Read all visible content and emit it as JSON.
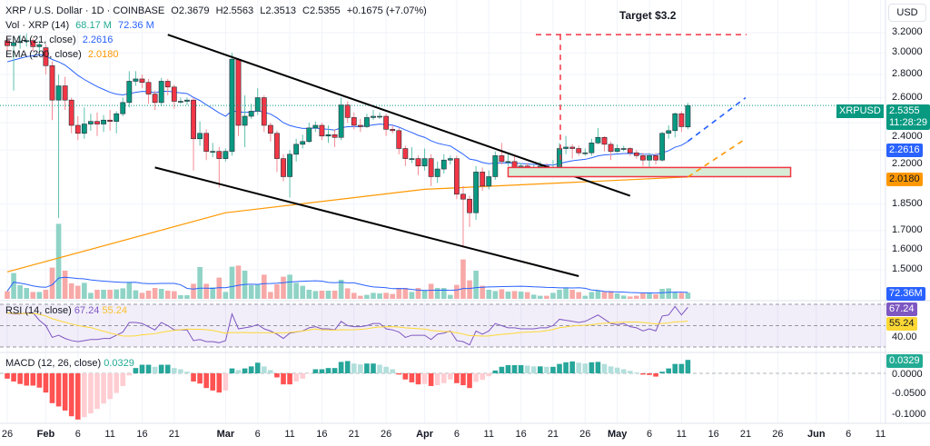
{
  "header": {
    "symbol_line": "XRP / U.S. Dollar · 1D · COINBASE",
    "open": "O2.3679",
    "high": "H2.5563",
    "low": "L2.3513",
    "close": "C2.5355",
    "change": "+0.1675 (+7.07%)"
  },
  "legend": {
    "vol_label": "Vol · XRP (14)",
    "vol_value": "68.17 M",
    "vol_ma": "72.36 M",
    "ema21_label": "EMA (21, close)",
    "ema21_value": "2.2616",
    "ema200_label": "EMA (200, close)",
    "ema200_value": "2.0180",
    "rsi_label": "RSI (14, close)",
    "rsi_value": "67.24",
    "rsi_ma_value": "55.24",
    "macd_label": "MACD (12, 26, close)",
    "macd_value": "0.0329"
  },
  "annotations": {
    "target_label": "Target $3.2",
    "target_price": 3.2,
    "upper_trendline": [
      {
        "date": "02-20",
        "price": 3.18
      },
      {
        "date": "05-03",
        "price": 1.9
      }
    ],
    "lower_trendline": [
      {
        "date": "02-18",
        "price": 2.08
      },
      {
        "date": "04-25",
        "price": 1.47
      }
    ],
    "support_zone": {
      "from": "04-14",
      "to": "05-28",
      "low": 2.02,
      "high": 2.08
    },
    "ema21_projection": {
      "to": "05-21",
      "price": 2.6
    },
    "ema200_projection": {
      "to": "05-21",
      "price": 2.28
    }
  },
  "right_axis": {
    "currency": "USD",
    "price_ticks": [
      "3.2000",
      "3.0000",
      "2.8000",
      "2.6000",
      "2.4000",
      "2.2000",
      "1.8500",
      "1.7000",
      "1.6000",
      "1.5000"
    ],
    "symbol_tag": "XRPUSD",
    "last_price": "2.5355",
    "countdown": "11:28:29",
    "ema21_tag": "2.2616",
    "ema200_tag": "2.0180",
    "vol_tag": "72.36M",
    "rsi_tag": "67.24",
    "rsi_ma_tag": "55.24",
    "rsi_tick": "40.00",
    "macd_tag": "0.0329",
    "macd_ticks": [
      "0.0000",
      "-0.0500",
      "-0.1000"
    ]
  },
  "x_axis": [
    {
      "label": "26",
      "date": "01-26"
    },
    {
      "label": "Feb",
      "date": "02-01",
      "month": true
    },
    {
      "label": "6",
      "date": "02-06"
    },
    {
      "label": "11",
      "date": "02-11"
    },
    {
      "label": "16",
      "date": "02-16"
    },
    {
      "label": "21",
      "date": "02-21"
    },
    {
      "label": "Mar",
      "date": "03-01",
      "month": true
    },
    {
      "label": "6",
      "date": "03-06"
    },
    {
      "label": "11",
      "date": "03-11"
    },
    {
      "label": "16",
      "date": "03-16"
    },
    {
      "label": "21",
      "date": "03-21"
    },
    {
      "label": "26",
      "date": "03-26"
    },
    {
      "label": "Apr",
      "date": "04-01",
      "month": true
    },
    {
      "label": "6",
      "date": "04-06"
    },
    {
      "label": "11",
      "date": "04-11"
    },
    {
      "label": "16",
      "date": "04-16"
    },
    {
      "label": "21",
      "date": "04-21"
    },
    {
      "label": "26",
      "date": "04-26"
    },
    {
      "label": "May",
      "date": "05-01",
      "month": true
    },
    {
      "label": "6",
      "date": "05-06"
    },
    {
      "label": "11",
      "date": "05-11"
    },
    {
      "label": "16",
      "date": "05-16"
    },
    {
      "label": "21",
      "date": "05-21"
    },
    {
      "label": "26",
      "date": "05-26"
    },
    {
      "label": "Jun",
      "date": "06-01",
      "month": true
    },
    {
      "label": "6",
      "date": "06-06"
    },
    {
      "label": "11",
      "date": "06-11"
    }
  ],
  "colors": {
    "up": "#089981",
    "down": "#f23645",
    "ema21": "#2962ff",
    "ema200": "#ff9800",
    "rsi": "#7e57c2",
    "rsi_ma": "#fdd835",
    "target": "#f23645",
    "grid": "#f0f3fa"
  },
  "chart_data": {
    "type": "candlestick",
    "start_date": "01-26",
    "price_scale": "log",
    "ohlc": [
      [
        3.12,
        3.15,
        3.02,
        3.07
      ],
      [
        3.07,
        3.16,
        2.66,
        3.1
      ],
      [
        3.1,
        3.18,
        3.04,
        3.11
      ],
      [
        3.11,
        3.19,
        3.06,
        3.12
      ],
      [
        3.12,
        3.14,
        3.02,
        3.06
      ],
      [
        3.06,
        3.12,
        3.0,
        3.08
      ],
      [
        3.05,
        3.08,
        2.8,
        2.88
      ],
      [
        2.88,
        2.92,
        2.42,
        2.58
      ],
      [
        2.58,
        2.8,
        1.77,
        2.7
      ],
      [
        2.7,
        2.78,
        2.5,
        2.58
      ],
      [
        2.58,
        2.6,
        2.32,
        2.38
      ],
      [
        2.38,
        2.45,
        2.27,
        2.32
      ],
      [
        2.32,
        2.52,
        2.28,
        2.39
      ],
      [
        2.39,
        2.47,
        2.34,
        2.41
      ],
      [
        2.41,
        2.48,
        2.3,
        2.39
      ],
      [
        2.39,
        2.46,
        2.33,
        2.42
      ],
      [
        2.42,
        2.5,
        2.34,
        2.41
      ],
      [
        2.41,
        2.49,
        2.32,
        2.47
      ],
      [
        2.47,
        2.6,
        2.45,
        2.56
      ],
      [
        2.56,
        2.83,
        2.52,
        2.74
      ],
      [
        2.74,
        2.83,
        2.7,
        2.76
      ],
      [
        2.76,
        2.8,
        2.68,
        2.73
      ],
      [
        2.73,
        2.76,
        2.55,
        2.63
      ],
      [
        2.63,
        2.66,
        2.5,
        2.56
      ],
      [
        2.56,
        2.77,
        2.53,
        2.74
      ],
      [
        2.74,
        2.76,
        2.62,
        2.69
      ],
      [
        2.69,
        2.71,
        2.51,
        2.57
      ],
      [
        2.57,
        2.6,
        2.55,
        2.57
      ],
      [
        2.57,
        2.6,
        2.54,
        2.58
      ],
      [
        2.58,
        2.6,
        2.06,
        2.28
      ],
      [
        2.28,
        2.41,
        2.23,
        2.32
      ],
      [
        2.32,
        2.35,
        2.13,
        2.19
      ],
      [
        2.19,
        2.25,
        2.15,
        2.19
      ],
      [
        2.19,
        2.22,
        1.95,
        2.14
      ],
      [
        2.14,
        2.21,
        2.12,
        2.19
      ],
      [
        2.19,
        3.0,
        2.16,
        2.94
      ],
      [
        2.94,
        2.95,
        2.3,
        2.38
      ],
      [
        2.38,
        2.62,
        2.22,
        2.45
      ],
      [
        2.45,
        2.55,
        2.43,
        2.49
      ],
      [
        2.49,
        2.68,
        2.46,
        2.6
      ],
      [
        2.6,
        2.62,
        2.33,
        2.38
      ],
      [
        2.38,
        2.4,
        2.26,
        2.32
      ],
      [
        2.32,
        2.34,
        2.05,
        2.14
      ],
      [
        2.14,
        2.17,
        1.99,
        2.02
      ],
      [
        2.02,
        2.2,
        1.89,
        2.17
      ],
      [
        2.17,
        2.28,
        2.12,
        2.24
      ],
      [
        2.24,
        2.31,
        2.21,
        2.26
      ],
      [
        2.26,
        2.4,
        2.25,
        2.36
      ],
      [
        2.36,
        2.41,
        2.33,
        2.38
      ],
      [
        2.38,
        2.4,
        2.27,
        2.3
      ],
      [
        2.3,
        2.38,
        2.25,
        2.31
      ],
      [
        2.31,
        2.35,
        2.22,
        2.29
      ],
      [
        2.29,
        2.6,
        2.27,
        2.54
      ],
      [
        2.54,
        2.57,
        2.4,
        2.44
      ],
      [
        2.44,
        2.48,
        2.35,
        2.38
      ],
      [
        2.38,
        2.43,
        2.33,
        2.37
      ],
      [
        2.37,
        2.47,
        2.36,
        2.44
      ],
      [
        2.44,
        2.5,
        2.42,
        2.45
      ],
      [
        2.45,
        2.48,
        2.43,
        2.45
      ],
      [
        2.45,
        2.47,
        2.3,
        2.35
      ],
      [
        2.35,
        2.38,
        2.32,
        2.34
      ],
      [
        2.34,
        2.36,
        2.17,
        2.21
      ],
      [
        2.21,
        2.23,
        2.09,
        2.14
      ],
      [
        2.14,
        2.22,
        2.11,
        2.14
      ],
      [
        2.14,
        2.16,
        2.03,
        2.09
      ],
      [
        2.09,
        2.21,
        2.06,
        2.14
      ],
      [
        2.14,
        2.17,
        1.96,
        2.02
      ],
      [
        2.02,
        2.12,
        1.98,
        2.07
      ],
      [
        2.07,
        2.17,
        2.04,
        2.13
      ],
      [
        2.13,
        2.16,
        2.1,
        2.14
      ],
      [
        2.14,
        2.16,
        1.88,
        1.91
      ],
      [
        1.91,
        1.96,
        1.61,
        1.88
      ],
      [
        1.88,
        1.9,
        1.72,
        1.8
      ],
      [
        1.8,
        2.09,
        1.76,
        2.05
      ],
      [
        2.05,
        2.08,
        1.93,
        1.96
      ],
      [
        1.96,
        2.06,
        1.94,
        2.02
      ],
      [
        2.02,
        2.19,
        2.0,
        2.16
      ],
      [
        2.16,
        2.25,
        2.1,
        2.12
      ],
      [
        2.12,
        2.17,
        2.09,
        2.12
      ],
      [
        2.12,
        2.16,
        2.04,
        2.08
      ],
      [
        2.08,
        2.11,
        2.04,
        2.09
      ],
      [
        2.09,
        2.11,
        2.04,
        2.07
      ],
      [
        2.07,
        2.1,
        2.05,
        2.07
      ],
      [
        2.07,
        2.12,
        2.05,
        2.09
      ],
      [
        2.09,
        2.11,
        2.06,
        2.08
      ],
      [
        2.08,
        2.13,
        2.06,
        2.08
      ],
      [
        2.08,
        2.25,
        2.06,
        2.21
      ],
      [
        2.21,
        2.3,
        2.17,
        2.22
      ],
      [
        2.22,
        2.24,
        2.14,
        2.21
      ],
      [
        2.21,
        2.23,
        2.16,
        2.18
      ],
      [
        2.18,
        2.21,
        2.16,
        2.18
      ],
      [
        2.18,
        2.28,
        2.16,
        2.25
      ],
      [
        2.25,
        2.36,
        2.24,
        2.29
      ],
      [
        2.29,
        2.3,
        2.19,
        2.24
      ],
      [
        2.24,
        2.26,
        2.13,
        2.19
      ],
      [
        2.19,
        2.24,
        2.18,
        2.21
      ],
      [
        2.21,
        2.23,
        2.19,
        2.21
      ],
      [
        2.21,
        2.22,
        2.16,
        2.18
      ],
      [
        2.18,
        2.2,
        2.14,
        2.16
      ],
      [
        2.16,
        2.18,
        2.09,
        2.13
      ],
      [
        2.13,
        2.18,
        2.08,
        2.16
      ],
      [
        2.16,
        2.18,
        2.1,
        2.13
      ],
      [
        2.13,
        2.33,
        2.12,
        2.32
      ],
      [
        2.32,
        2.38,
        2.28,
        2.34
      ],
      [
        2.34,
        2.48,
        2.29,
        2.47
      ],
      [
        2.47,
        2.49,
        2.33,
        2.37
      ],
      [
        2.3679,
        2.5563,
        2.3513,
        2.5355
      ]
    ],
    "ema200": [
      {
        "date": "01-26",
        "price": 1.49
      },
      {
        "date": "03-01",
        "price": 1.8
      },
      {
        "date": "04-01",
        "price": 1.94
      },
      {
        "date": "05-12",
        "price": 2.018
      }
    ],
    "volume_m": [
      84,
      284,
      150,
      120,
      76,
      76,
      100,
      344,
      826,
      310,
      170,
      144,
      176,
      66,
      100,
      100,
      100,
      104,
      116,
      184,
      94,
      66,
      90,
      120,
      110,
      90,
      84,
      40,
      40,
      166,
      350,
      166,
      126,
      234,
      76,
      354,
      366,
      310,
      150,
      154,
      266,
      76,
      160,
      244,
      266,
      176,
      144,
      100,
      86,
      90,
      90,
      90,
      210,
      116,
      66,
      34,
      44,
      66,
      60,
      66,
      54,
      120,
      120,
      76,
      120,
      94,
      166,
      120,
      120,
      44,
      154,
      434,
      204,
      310,
      144,
      100,
      86,
      106,
      80,
      86,
      80,
      74,
      46,
      34,
      34,
      66,
      100,
      126,
      100,
      74,
      34,
      76,
      94,
      76,
      86,
      60,
      36,
      26,
      34,
      60,
      66,
      50,
      110,
      116,
      76,
      66,
      68.17
    ],
    "rsi": [
      62,
      61,
      61,
      62,
      62,
      55,
      50,
      39,
      41,
      38,
      36,
      35,
      36,
      37,
      37,
      38,
      38,
      41,
      44,
      53,
      53,
      52,
      49,
      46,
      53,
      50,
      46,
      46,
      46,
      36,
      37,
      35,
      35,
      34,
      36,
      61,
      47,
      48,
      49,
      51,
      47,
      45,
      42,
      38,
      43,
      44,
      45,
      48,
      49,
      47,
      47,
      46,
      54,
      50,
      49,
      49,
      50,
      52,
      52,
      47,
      46,
      44,
      39,
      41,
      41,
      41,
      37,
      42,
      43,
      45,
      36,
      35,
      32,
      45,
      42,
      45,
      52,
      50,
      48,
      48,
      47,
      47,
      47,
      48,
      48,
      50,
      56,
      55,
      54,
      53,
      54,
      57,
      60,
      56,
      52,
      51,
      52,
      49,
      48,
      45,
      47,
      45,
      59,
      60,
      68,
      60,
      67.24
    ],
    "rsi_levels": [
      70,
      50,
      30
    ],
    "macd_hist": [
      -0.013,
      -0.02,
      -0.026,
      -0.03,
      -0.03,
      -0.035,
      -0.047,
      -0.073,
      -0.081,
      -0.091,
      -0.105,
      -0.113,
      -0.107,
      -0.098,
      -0.087,
      -0.074,
      -0.063,
      -0.048,
      -0.031,
      -0.005,
      0.013,
      0.021,
      0.021,
      0.016,
      0.021,
      0.021,
      0.013,
      0.01,
      0.004,
      -0.02,
      -0.025,
      -0.036,
      -0.042,
      -0.047,
      -0.042,
      0.012,
      0.008,
      0.012,
      0.017,
      0.026,
      0.017,
      0.008,
      -0.01,
      -0.027,
      -0.027,
      -0.02,
      -0.013,
      -0.001,
      0.01,
      0.01,
      0.013,
      0.013,
      0.028,
      0.03,
      0.024,
      0.022,
      0.024,
      0.024,
      0.021,
      0.016,
      0.01,
      -0.003,
      -0.015,
      -0.022,
      -0.027,
      -0.026,
      -0.031,
      -0.029,
      -0.024,
      -0.015,
      -0.024,
      -0.029,
      -0.036,
      -0.021,
      -0.016,
      -0.007,
      0.007,
      0.016,
      0.02,
      0.02,
      0.02,
      0.019,
      0.017,
      0.017,
      0.016,
      0.016,
      0.023,
      0.027,
      0.029,
      0.026,
      0.024,
      0.027,
      0.028,
      0.023,
      0.017,
      0.014,
      0.01,
      0.006,
      0.002,
      -0.003,
      -0.004,
      -0.008,
      0.004,
      0.012,
      0.023,
      0.023,
      0.0329
    ]
  }
}
